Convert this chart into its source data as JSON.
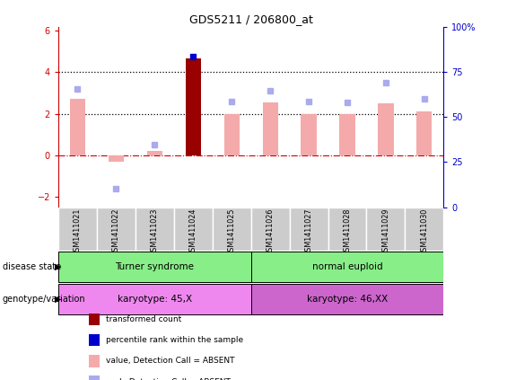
{
  "title": "GDS5211 / 206800_at",
  "samples": [
    "GSM1411021",
    "GSM1411022",
    "GSM1411023",
    "GSM1411024",
    "GSM1411025",
    "GSM1411026",
    "GSM1411027",
    "GSM1411028",
    "GSM1411029",
    "GSM1411030"
  ],
  "red_bars": [
    2.7,
    -0.3,
    0.2,
    4.65,
    2.0,
    2.55,
    2.0,
    2.0,
    2.5,
    2.1
  ],
  "blue_dots": [
    3.2,
    -1.6,
    0.5,
    4.75,
    2.6,
    3.1,
    2.6,
    2.55,
    3.5,
    2.7
  ],
  "highlight_sample_idx": 3,
  "ylim": [
    -2.5,
    6.2
  ],
  "yticks_left": [
    -2,
    0,
    2,
    4,
    6
  ],
  "yticks_right_labels": [
    "0",
    "25",
    "50",
    "75",
    "100%"
  ],
  "yticks_right_values": [
    0,
    25,
    50,
    75,
    100
  ],
  "hlines": [
    4.0,
    2.0
  ],
  "hline_y0": 0.0,
  "bar_color_absent": "#f4aaaa",
  "bar_color_highlight": "#990000",
  "dot_color_absent": "#aaaaee",
  "dot_color_highlight": "#0000cc",
  "bar_width": 0.4,
  "dot_size": 4,
  "left_tick_color": "#cc0000",
  "right_tick_color": "#0000cc",
  "disease_labels": [
    "Turner syndrome",
    "normal euploid"
  ],
  "disease_ranges": [
    [
      0,
      4
    ],
    [
      5,
      9
    ]
  ],
  "disease_color": "#88ee88",
  "karyotype_labels": [
    "karyotype: 45,X",
    "karyotype: 46,XX"
  ],
  "karyotype_ranges": [
    [
      0,
      4
    ],
    [
      5,
      9
    ]
  ],
  "karyotype_colors": [
    "#ee88ee",
    "#cc66cc"
  ],
  "row_label_disease": "disease state",
  "row_label_geno": "genotype/variation",
  "legend_items": [
    {
      "label": "transformed count",
      "color": "#990000"
    },
    {
      "label": "percentile rank within the sample",
      "color": "#0000cc"
    },
    {
      "label": "value, Detection Call = ABSENT",
      "color": "#f4aaaa"
    },
    {
      "label": "rank, Detection Call = ABSENT",
      "color": "#aaaaee"
    }
  ],
  "xlabelrow_facecolor": "#cccccc",
  "xlabelrow_edgecolor": "#ffffff"
}
